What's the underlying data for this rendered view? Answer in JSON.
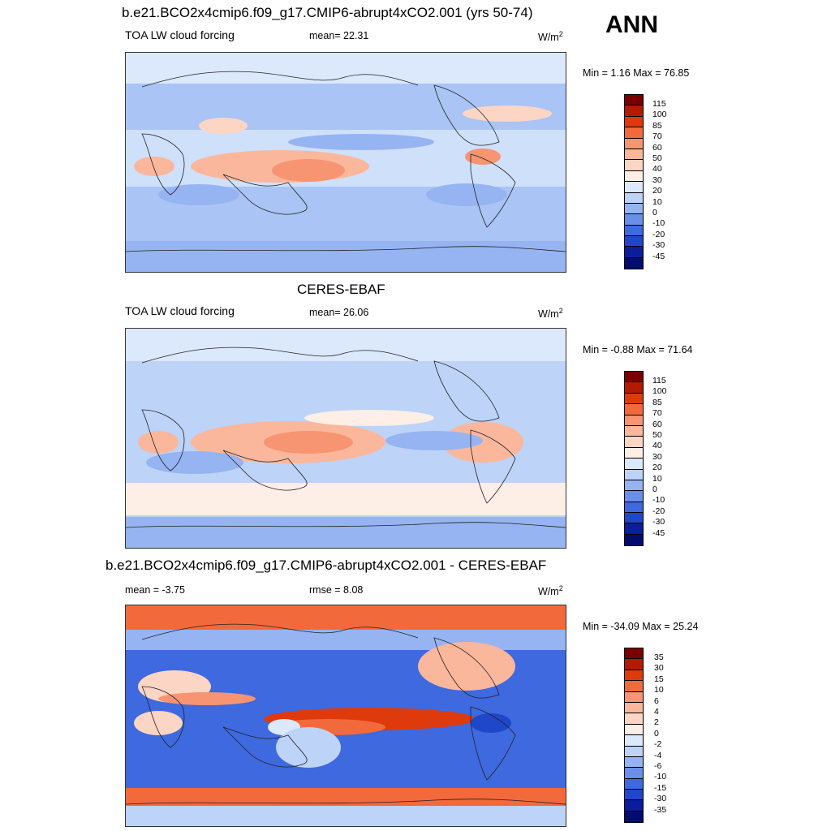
{
  "season": "ANN",
  "panels": [
    {
      "title": "b.e21.BCO2x4cmip6.f09_g17.CMIP6-abrupt4xCO2.001 (yrs 50-74)",
      "variable": "TOA LW cloud forcing",
      "stat": "mean=  22.31",
      "unit": "W/m",
      "unit_sup": "2",
      "range": "Min =   1.16 Max =  76.85",
      "colorbar_labels": [
        "115",
        "100",
        "85",
        "70",
        "60",
        "50",
        "40",
        "30",
        "20",
        "10",
        "0",
        "-10",
        "-20",
        "-30",
        "-45"
      ],
      "colors": [
        "#7a0000",
        "#b31b00",
        "#de3a0c",
        "#f26a3b",
        "#f79472",
        "#fbb79c",
        "#fdd5c4",
        "#fdeee6",
        "#dce8fb",
        "#bdd3f8",
        "#96b4f2",
        "#6a8fe9",
        "#3e69df",
        "#1f47c9",
        "#0a1d9a",
        "#000c6e"
      ]
    },
    {
      "title": "CERES-EBAF",
      "variable": "TOA LW cloud forcing",
      "stat": "mean=  26.06",
      "unit": "W/m",
      "unit_sup": "2",
      "range": "Min =  -0.88 Max =  71.64",
      "colorbar_labels": [
        "115",
        "100",
        "85",
        "70",
        "60",
        "50",
        "40",
        "30",
        "20",
        "10",
        "0",
        "-10",
        "-20",
        "-30",
        "-45"
      ],
      "colors": [
        "#7a0000",
        "#b31b00",
        "#de3a0c",
        "#f26a3b",
        "#f79472",
        "#fbb79c",
        "#fdd5c4",
        "#fdeee6",
        "#dce8fb",
        "#bdd3f8",
        "#96b4f2",
        "#6a8fe9",
        "#3e69df",
        "#1f47c9",
        "#0a1d9a",
        "#000c6e"
      ]
    },
    {
      "title": "b.e21.BCO2x4cmip6.f09_g17.CMIP6-abrupt4xCO2.001 - CERES-EBAF",
      "stat_left": "mean =  -3.75",
      "stat_mid": "rmse =   8.08",
      "unit": "W/m",
      "unit_sup": "2",
      "range": "Min = -34.09 Max =  25.24",
      "colorbar_labels": [
        "35",
        "30",
        "15",
        "10",
        "6",
        "4",
        "2",
        "0",
        "-2",
        "-4",
        "-6",
        "-10",
        "-15",
        "-30",
        "-35"
      ],
      "colors": [
        "#7a0000",
        "#b31b00",
        "#de3a0c",
        "#f26a3b",
        "#f79472",
        "#fbb79c",
        "#fdd5c4",
        "#fdeee6",
        "#dce8fb",
        "#bdd3f8",
        "#96b4f2",
        "#6a8fe9",
        "#3e69df",
        "#1f47c9",
        "#0a1d9a",
        "#000c6e"
      ]
    }
  ]
}
